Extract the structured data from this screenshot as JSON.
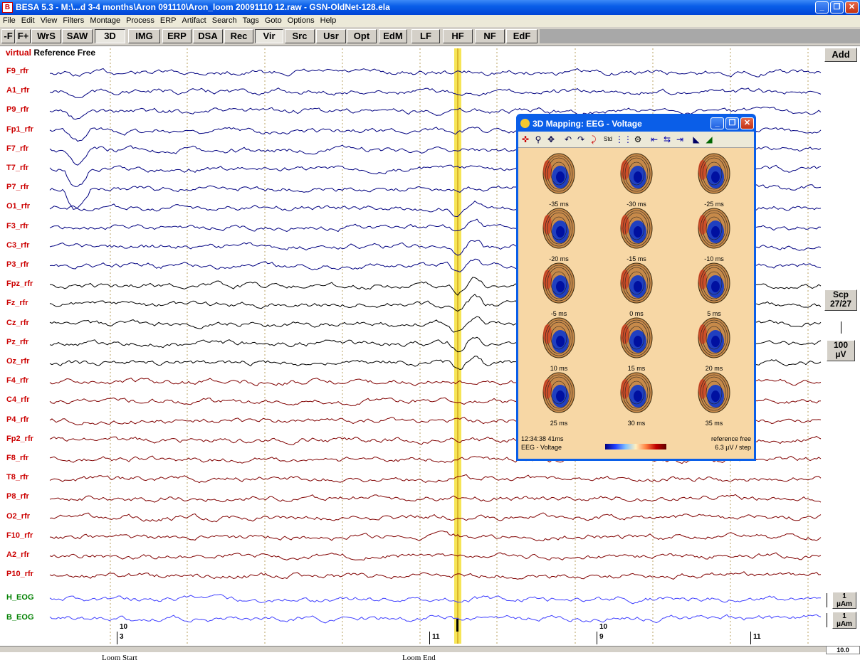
{
  "window": {
    "title": "BESA 5.3 - M:\\...d 3-4 months\\Aron 091110\\Aron_loom 20091110 12.raw - GSN-OldNet-128.ela",
    "icon": "besa-app-icon"
  },
  "menu": [
    "File",
    "Edit",
    "View",
    "Filters",
    "Montage",
    "Process",
    "ERP",
    "Artifact",
    "Search",
    "Tags",
    "Goto",
    "Options",
    "Help"
  ],
  "toolbar": [
    {
      "label": "-F",
      "pressed": false
    },
    {
      "label": "F+",
      "pressed": false
    },
    {
      "label": "WrS",
      "pressed": false
    },
    {
      "label": "SAW",
      "pressed": false
    },
    {
      "label": "3D",
      "pressed": true
    },
    {
      "label": "IMG",
      "pressed": false
    },
    {
      "label": "ERP",
      "pressed": false
    },
    {
      "label": "DSA",
      "pressed": false
    },
    {
      "label": "Rec",
      "pressed": false
    },
    {
      "label": "Vir",
      "pressed": true
    },
    {
      "label": "Src",
      "pressed": false
    },
    {
      "label": "Usr",
      "pressed": false
    },
    {
      "label": "Opt",
      "pressed": false
    },
    {
      "label": "EdM",
      "pressed": false
    },
    {
      "label": "LF",
      "pressed": false
    },
    {
      "label": "HF",
      "pressed": false
    },
    {
      "label": "NF",
      "pressed": false
    },
    {
      "label": "EdF",
      "pressed": false
    }
  ],
  "montage": {
    "prefix": "virtual",
    "name": "Reference Free",
    "add_label": "Add"
  },
  "channels": [
    {
      "name": "F9_rfr",
      "color": "#000080"
    },
    {
      "name": "A1_rfr",
      "color": "#000080"
    },
    {
      "name": "P9_rfr",
      "color": "#000080"
    },
    {
      "name": "Fp1_rfr",
      "color": "#000080"
    },
    {
      "name": "F7_rfr",
      "color": "#000080"
    },
    {
      "name": "T7_rfr",
      "color": "#000080"
    },
    {
      "name": "P7_rfr",
      "color": "#000080"
    },
    {
      "name": "O1_rfr",
      "color": "#000080"
    },
    {
      "name": "F3_rfr",
      "color": "#000080"
    },
    {
      "name": "C3_rfr",
      "color": "#000080"
    },
    {
      "name": "P3_rfr",
      "color": "#000080"
    },
    {
      "name": "Fpz_rfr",
      "color": "#000000"
    },
    {
      "name": "Fz_rfr",
      "color": "#000000"
    },
    {
      "name": "Cz_rfr",
      "color": "#000000"
    },
    {
      "name": "Pz_rfr",
      "color": "#000000"
    },
    {
      "name": "Oz_rfr",
      "color": "#000000"
    },
    {
      "name": "F4_rfr",
      "color": "#800000"
    },
    {
      "name": "C4_rfr",
      "color": "#800000"
    },
    {
      "name": "P4_rfr",
      "color": "#800000"
    },
    {
      "name": "Fp2_rfr",
      "color": "#800000"
    },
    {
      "name": "F8_rfr",
      "color": "#800000"
    },
    {
      "name": "T8_rfr",
      "color": "#800000"
    },
    {
      "name": "P8_rfr",
      "color": "#800000"
    },
    {
      "name": "O2_rfr",
      "color": "#800000"
    },
    {
      "name": "F10_rfr",
      "color": "#800000"
    },
    {
      "name": "A2_rfr",
      "color": "#800000"
    },
    {
      "name": "P10_rfr",
      "color": "#800000"
    },
    {
      "name": "H_EOG",
      "color": "#4040ff"
    },
    {
      "name": "B_EOG",
      "color": "#4040ff"
    }
  ],
  "colors": {
    "eeg_label": "#cc0000",
    "eog_label": "#008000",
    "cursor": "#f5e13a"
  },
  "scales": {
    "scp": "Scp",
    "scp_count": "27/27",
    "uv_value": "100",
    "uv_unit": "µV",
    "eog_value": "1",
    "eog_unit": "µAm"
  },
  "timeline": {
    "markers": [
      {
        "top": "10",
        "bottom": "3"
      },
      {
        "top": "",
        "bottom": "11"
      },
      {
        "top": "10",
        "bottom": "9"
      },
      {
        "top": "",
        "bottom": "11"
      }
    ],
    "events": [
      "Loom Start",
      "Loom End"
    ],
    "page": "10.0"
  },
  "mapping": {
    "title": "3D Mapping: EEG - Voltage",
    "maps": [
      "-35 ms",
      "-30 ms",
      "-25 ms",
      "-20 ms",
      "-15 ms",
      "-10 ms",
      "-5 ms",
      "0 ms",
      "5 ms",
      "10 ms",
      "15 ms",
      "20 ms",
      "25 ms",
      "30 ms",
      "35 ms"
    ],
    "time": "12:34:38  41ms",
    "quantity": "EEG - Voltage",
    "reference": "reference free",
    "step": "6.3 µV / step"
  }
}
